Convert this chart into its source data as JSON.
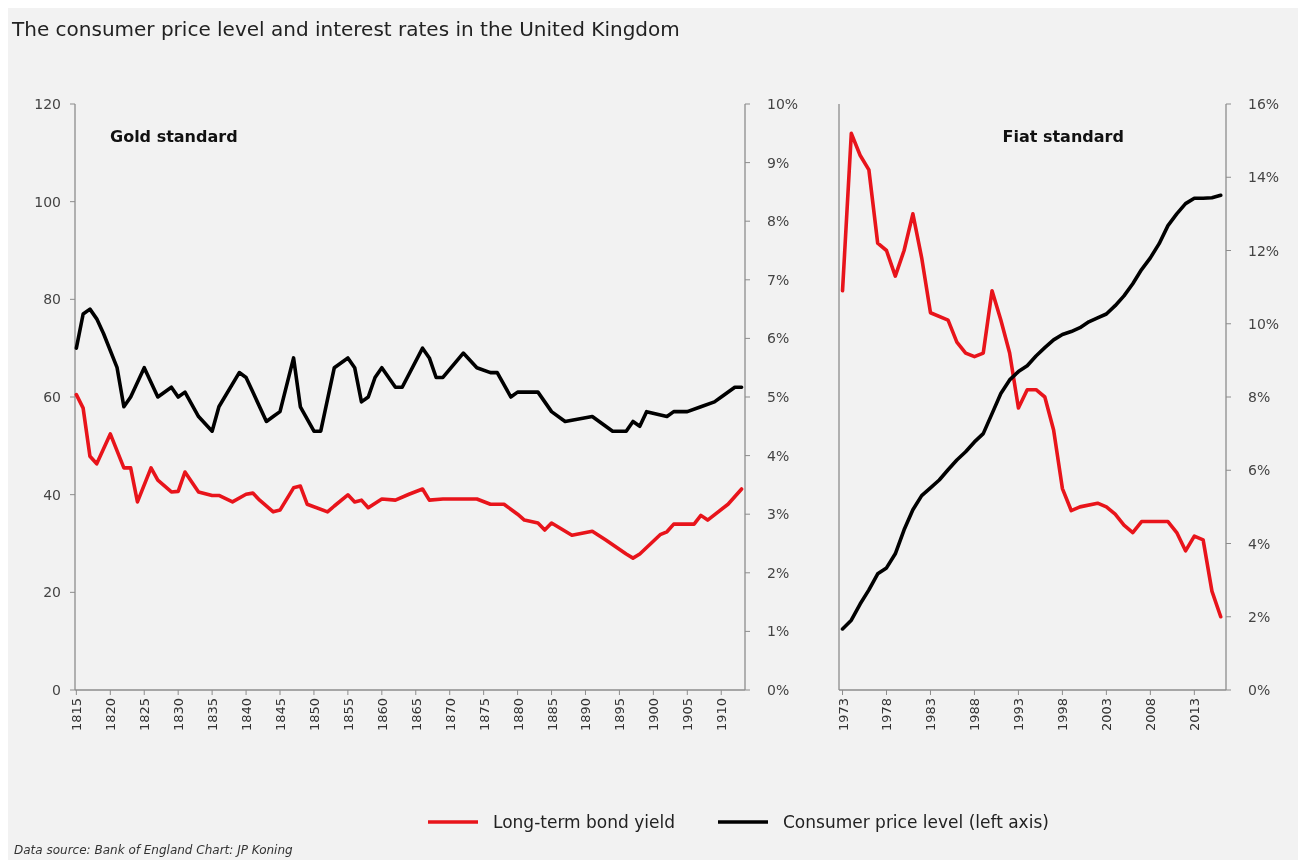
{
  "chart_data": [
    {
      "type": "line",
      "title": "The consumer price level and interest rates in the United Kingdom",
      "annotations": [
        "Gold standard",
        "Data source: Bank of England  Chart: JP Koning"
      ],
      "xlim": [
        1814.8,
        1913.5
      ],
      "xticks": [
        1815,
        1820,
        1825,
        1830,
        1835,
        1840,
        1845,
        1850,
        1855,
        1860,
        1865,
        1870,
        1875,
        1880,
        1885,
        1890,
        1895,
        1900,
        1905,
        1910
      ],
      "ylim": [
        0,
        120
      ],
      "yticks": [
        0,
        20,
        40,
        60,
        80,
        100,
        120
      ],
      "y2lim": [
        0,
        10
      ],
      "y2ticks": [
        {
          "value": 0,
          "label": "0%"
        },
        {
          "value": 1,
          "label": "1%"
        },
        {
          "value": 2,
          "label": "2%"
        },
        {
          "value": 3,
          "label": "3%"
        },
        {
          "value": 4,
          "label": "4%"
        },
        {
          "value": 5,
          "label": "5%"
        },
        {
          "value": 6,
          "label": "6%"
        },
        {
          "value": 7,
          "label": "7%"
        },
        {
          "value": 8,
          "label": "8%"
        },
        {
          "value": 9,
          "label": "9%"
        },
        {
          "value": 10,
          "label": "10%"
        }
      ],
      "legend": "bottom",
      "grid": false,
      "series": [
        {
          "name": "Long-term bond yield",
          "color": "#e8141b",
          "axis": "y2",
          "x": [
            1815,
            1816,
            1817,
            1818,
            1820,
            1822,
            1823,
            1824,
            1826,
            1827,
            1829,
            1830,
            1831,
            1833,
            1835,
            1836,
            1838,
            1840,
            1841,
            1842,
            1844,
            1845,
            1847,
            1848,
            1849,
            1852,
            1853,
            1855,
            1856,
            1857,
            1858,
            1860,
            1862,
            1864,
            1866,
            1867,
            1869,
            1872,
            1874,
            1876,
            1878,
            1880,
            1881,
            1883,
            1884,
            1885,
            1888,
            1891,
            1893,
            1896,
            1897,
            1898,
            1901,
            1902,
            1903,
            1906,
            1907,
            1908,
            1911,
            1913
          ],
          "values": [
            5.04,
            4.81,
            3.99,
            3.86,
            4.37,
            3.79,
            3.79,
            3.21,
            3.79,
            3.58,
            3.38,
            3.39,
            3.72,
            3.38,
            3.32,
            3.32,
            3.21,
            3.34,
            3.36,
            3.24,
            3.04,
            3.07,
            3.45,
            3.48,
            3.17,
            3.04,
            3.14,
            3.33,
            3.21,
            3.24,
            3.11,
            3.26,
            3.24,
            3.34,
            3.43,
            3.24,
            3.26,
            3.26,
            3.26,
            3.17,
            3.17,
            3.0,
            2.9,
            2.85,
            2.73,
            2.85,
            2.64,
            2.71,
            2.56,
            2.32,
            2.25,
            2.32,
            2.65,
            2.7,
            2.83,
            2.83,
            2.98,
            2.9,
            3.17,
            3.43
          ]
        },
        {
          "name": "Consumer price level (left axis)",
          "color": "#000000",
          "x": [
            1815,
            1816,
            1817,
            1818,
            1819,
            1821,
            1822,
            1823,
            1825,
            1827,
            1829,
            1830,
            1831,
            1833,
            1835,
            1836,
            1839,
            1840,
            1841,
            1843,
            1844,
            1845,
            1847,
            1848,
            1850,
            1851,
            1853,
            1855,
            1856,
            1857,
            1858,
            1859,
            1860,
            1862,
            1863,
            1866,
            1867,
            1868,
            1869,
            1872,
            1874,
            1876,
            1877,
            1879,
            1880,
            1883,
            1885,
            1887,
            1891,
            1894,
            1896,
            1897,
            1898,
            1899,
            1902,
            1903,
            1905,
            1907,
            1909,
            1910,
            1912,
            1913
          ],
          "values": [
            70,
            77,
            78,
            76,
            73,
            66,
            58,
            60,
            66,
            60,
            62,
            60,
            61,
            56,
            53,
            58,
            65,
            64,
            61,
            55,
            56,
            57,
            68,
            58,
            53,
            53,
            66,
            68,
            66,
            59,
            60,
            64,
            66,
            62,
            62,
            70,
            68,
            64,
            64,
            69,
            66,
            65,
            65,
            60,
            61,
            61,
            57,
            55,
            56,
            53,
            53,
            55,
            54,
            57,
            56,
            57,
            57,
            58,
            59,
            60,
            62,
            62
          ]
        }
      ]
    },
    {
      "type": "line",
      "annotations": [
        "Fiat standard"
      ],
      "xlim": [
        1972.6,
        2016.6
      ],
      "xticks": [
        1973,
        1978,
        1983,
        1988,
        1993,
        1998,
        2003,
        2008,
        2013
      ],
      "ylim": [
        0,
        120
      ],
      "y2lim": [
        0,
        16
      ],
      "y2ticks": [
        {
          "value": 0,
          "label": "0%"
        },
        {
          "value": 2,
          "label": "2%"
        },
        {
          "value": 4,
          "label": "4%"
        },
        {
          "value": 6,
          "label": "6%"
        },
        {
          "value": 8,
          "label": "8%"
        },
        {
          "value": 10,
          "label": "10%"
        },
        {
          "value": 12,
          "label": "12%"
        },
        {
          "value": 14,
          "label": "14%"
        },
        {
          "value": 16,
          "label": "16%"
        }
      ],
      "grid": false,
      "series": [
        {
          "color": "#e8141b",
          "axis": "y2",
          "x": [
            1973,
            1974,
            1975,
            1976,
            1977,
            1978,
            1979,
            1980,
            1981,
            1982,
            1983,
            1985,
            1986,
            1987,
            1988,
            1989,
            1990,
            1991,
            1992,
            1993,
            1994,
            1995,
            1996,
            1997,
            1998,
            1999,
            2000,
            2002,
            2003,
            2004,
            2005,
            2006,
            2007,
            2009,
            2010,
            2011,
            2012,
            2013,
            2014,
            2015,
            2016
          ],
          "values": [
            10.9,
            15.2,
            14.6,
            14.2,
            12.2,
            12.0,
            11.3,
            12.0,
            13.0,
            11.8,
            10.3,
            10.1,
            9.5,
            9.2,
            9.1,
            9.2,
            10.9,
            10.1,
            9.2,
            7.7,
            8.2,
            8.2,
            8.0,
            7.1,
            5.5,
            4.9,
            5.0,
            5.1,
            5.0,
            4.8,
            4.5,
            4.3,
            4.6,
            4.6,
            4.6,
            4.3,
            3.8,
            4.2,
            4.1,
            2.7,
            2.0
          ]
        },
        {
          "color": "#000000",
          "x": [
            1973,
            1974,
            1975,
            1976,
            1977,
            1978,
            1979,
            1980,
            1981,
            1982,
            1983,
            1984,
            1985,
            1986,
            1987,
            1988,
            1989,
            1990,
            1991,
            1992,
            1993,
            1994,
            1995,
            1996,
            1997,
            1998,
            1999,
            2000,
            2001,
            2002,
            2003,
            2004,
            2005,
            2006,
            2007,
            2008,
            2009,
            2010,
            2011,
            2012,
            2013,
            2014,
            2015,
            2016
          ],
          "values": [
            12.5,
            14.3,
            17.6,
            20.5,
            23.8,
            25.0,
            27.9,
            32.8,
            36.9,
            39.8,
            41.4,
            43.0,
            45.1,
            47.1,
            48.8,
            50.8,
            52.5,
            56.6,
            60.7,
            63.5,
            65.2,
            66.4,
            68.4,
            70.1,
            71.7,
            72.8,
            73.4,
            74.2,
            75.4,
            76.2,
            77.0,
            78.7,
            80.7,
            83.2,
            86.1,
            88.5,
            91.4,
            95.1,
            97.5,
            99.6,
            100.7,
            100.7,
            100.8,
            101.3
          ]
        }
      ]
    }
  ]
}
